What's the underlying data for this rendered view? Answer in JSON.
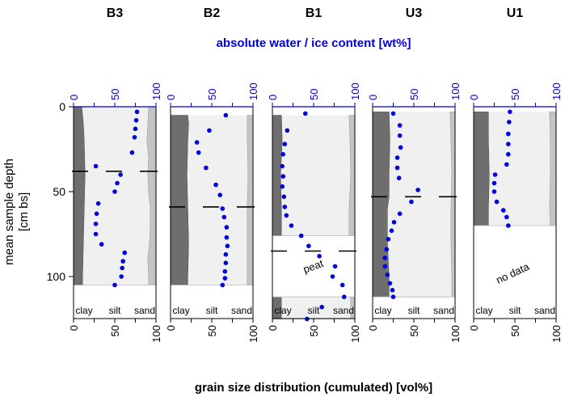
{
  "chart_data": {
    "type": "scatter",
    "top_axis_label": "absolute water / ice content [wt%]",
    "bottom_axis_label": "grain size distribution (cumulated) [vol%]",
    "ylabel": "mean sample depth\n[cm bs]",
    "ylim": [
      0,
      125
    ],
    "y_ticks": [
      0,
      50,
      100
    ],
    "x_ticks": [
      0,
      50,
      100
    ],
    "xlim": [
      0,
      100
    ],
    "class_labels": [
      "clay",
      "silt",
      "sand"
    ],
    "colors": {
      "points": "#0000dd",
      "clay": "#6e6e6e",
      "silt": "#f0f0f0",
      "sand": "#c4c4c4",
      "axis_top": "#0000cc"
    },
    "panels": [
      {
        "name": "B3",
        "grain_range": [
          0,
          105
        ],
        "clay_boundary": [
          [
            0,
            12
          ],
          [
            105,
            12
          ]
        ],
        "clay_profile": [
          [
            0,
            10
          ],
          [
            10,
            12
          ],
          [
            20,
            13
          ],
          [
            40,
            14
          ],
          [
            60,
            13
          ],
          [
            80,
            12
          ],
          [
            100,
            11
          ],
          [
            105,
            11
          ]
        ],
        "sand_profile": [
          [
            0,
            91
          ],
          [
            10,
            90
          ],
          [
            20,
            89
          ],
          [
            30,
            91
          ],
          [
            40,
            90
          ],
          [
            50,
            91
          ],
          [
            60,
            93
          ],
          [
            70,
            93
          ],
          [
            80,
            92
          ],
          [
            90,
            90
          ],
          [
            100,
            91
          ],
          [
            105,
            91
          ]
        ],
        "layer_marks": [
          38
        ],
        "water": [
          [
            3,
            77
          ],
          [
            8,
            76
          ],
          [
            13,
            75
          ],
          [
            18,
            74
          ],
          [
            27,
            71
          ],
          [
            35,
            27
          ],
          [
            40,
            57
          ],
          [
            45,
            53
          ],
          [
            50,
            50
          ],
          [
            57,
            30
          ],
          [
            63,
            28
          ],
          [
            69,
            27
          ],
          [
            75,
            27
          ],
          [
            81,
            34
          ],
          [
            86,
            62
          ],
          [
            91,
            60
          ],
          [
            95,
            59
          ],
          [
            100,
            58
          ],
          [
            105,
            50
          ]
        ]
      },
      {
        "name": "B2",
        "grain_range": [
          5,
          105
        ],
        "clay_profile": [
          [
            5,
            21
          ],
          [
            10,
            22
          ],
          [
            20,
            21
          ],
          [
            40,
            20
          ],
          [
            60,
            21
          ],
          [
            80,
            22
          ],
          [
            100,
            21
          ],
          [
            105,
            21
          ]
        ],
        "sand_profile": [
          [
            5,
            93
          ],
          [
            20,
            93
          ],
          [
            40,
            94
          ],
          [
            60,
            93
          ],
          [
            80,
            93
          ],
          [
            100,
            93
          ],
          [
            105,
            93
          ]
        ],
        "layer_marks": [
          59
        ],
        "water": [
          [
            5,
            67
          ],
          [
            14,
            47
          ],
          [
            21,
            32
          ],
          [
            27,
            34
          ],
          [
            36,
            43
          ],
          [
            46,
            55
          ],
          [
            52,
            60
          ],
          [
            60,
            63
          ],
          [
            65,
            65
          ],
          [
            71,
            68
          ],
          [
            77,
            68
          ],
          [
            82,
            69
          ],
          [
            87,
            67
          ],
          [
            92,
            67
          ],
          [
            97,
            66
          ],
          [
            101,
            66
          ],
          [
            105,
            63
          ]
        ]
      },
      {
        "name": "B1",
        "grain_range": [
          5,
          125
        ],
        "clay_profile": [
          [
            5,
            11
          ],
          [
            20,
            12
          ],
          [
            40,
            10
          ],
          [
            60,
            11
          ],
          [
            76,
            11
          ],
          [
            85,
            11
          ],
          [
            112,
            11
          ],
          [
            125,
            11
          ]
        ],
        "sand_profile": [
          [
            5,
            93
          ],
          [
            20,
            94
          ],
          [
            40,
            95
          ],
          [
            60,
            93
          ],
          [
            76,
            93
          ],
          [
            112,
            95
          ],
          [
            125,
            95
          ]
        ],
        "gap_range": [
          76,
          112
        ],
        "layer_marks": [
          85
        ],
        "note": "peat",
        "water": [
          [
            4,
            40
          ],
          [
            14,
            18
          ],
          [
            22,
            15
          ],
          [
            28,
            13
          ],
          [
            35,
            12
          ],
          [
            41,
            13
          ],
          [
            47,
            12
          ],
          [
            53,
            14
          ],
          [
            59,
            15
          ],
          [
            64,
            17
          ],
          [
            70,
            23
          ],
          [
            76,
            35
          ],
          [
            82,
            44
          ],
          [
            88,
            57
          ],
          [
            94,
            76
          ],
          [
            100,
            73
          ],
          [
            105,
            85
          ],
          [
            112,
            87
          ],
          [
            118,
            60
          ],
          [
            125,
            42
          ]
        ]
      },
      {
        "name": "U3",
        "grain_range": [
          3,
          112
        ],
        "clay_profile": [
          [
            3,
            20
          ],
          [
            20,
            21
          ],
          [
            40,
            20
          ],
          [
            53,
            20
          ],
          [
            60,
            18
          ],
          [
            80,
            18
          ],
          [
            100,
            20
          ],
          [
            112,
            20
          ]
        ],
        "sand_profile": [
          [
            3,
            94
          ],
          [
            20,
            95
          ],
          [
            40,
            96
          ],
          [
            60,
            95
          ],
          [
            80,
            95
          ],
          [
            100,
            96
          ],
          [
            112,
            96
          ]
        ],
        "layer_marks": [
          53
        ],
        "water": [
          [
            4,
            25
          ],
          [
            11,
            33
          ],
          [
            17,
            33
          ],
          [
            24,
            34
          ],
          [
            30,
            30
          ],
          [
            36,
            30
          ],
          [
            42,
            32
          ],
          [
            49,
            55
          ],
          [
            56,
            47
          ],
          [
            63,
            33
          ],
          [
            68,
            26
          ],
          [
            73,
            23
          ],
          [
            78,
            19
          ],
          [
            84,
            17
          ],
          [
            89,
            15
          ],
          [
            94,
            15
          ],
          [
            99,
            18
          ],
          [
            104,
            21
          ],
          [
            108,
            24
          ],
          [
            112,
            25
          ]
        ]
      },
      {
        "name": "U1",
        "grain_range": [
          3,
          70
        ],
        "clay_profile": [
          [
            3,
            18
          ],
          [
            20,
            18
          ],
          [
            40,
            19
          ],
          [
            60,
            18
          ],
          [
            70,
            18
          ]
        ],
        "sand_profile": [
          [
            3,
            92
          ],
          [
            20,
            93
          ],
          [
            40,
            93
          ],
          [
            60,
            92
          ],
          [
            70,
            93
          ]
        ],
        "gap_range": [
          70,
          125
        ],
        "note": "no data",
        "water": [
          [
            3,
            44
          ],
          [
            9,
            43
          ],
          [
            16,
            42
          ],
          [
            22,
            42
          ],
          [
            28,
            42
          ],
          [
            34,
            40
          ],
          [
            40,
            26
          ],
          [
            45,
            25
          ],
          [
            50,
            25
          ],
          [
            56,
            28
          ],
          [
            61,
            36
          ],
          [
            65,
            40
          ],
          [
            70,
            42
          ]
        ]
      }
    ]
  }
}
